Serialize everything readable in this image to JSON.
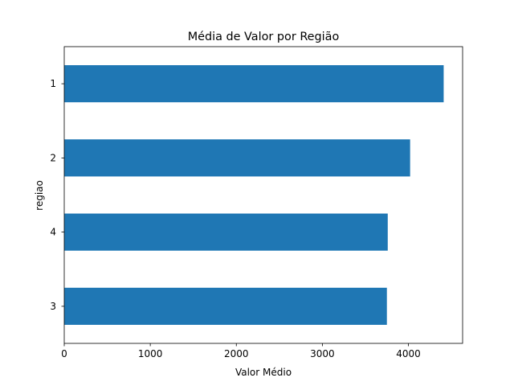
{
  "chart_data": {
    "type": "bar",
    "orientation": "horizontal",
    "title": "Média de Valor por Região",
    "xlabel": "Valor Médio",
    "ylabel": "regiao",
    "categories": [
      "1",
      "2",
      "4",
      "3"
    ],
    "values": [
      4410,
      4020,
      3760,
      3750
    ],
    "xlim": [
      0,
      4630
    ],
    "xticks": [
      0,
      1000,
      2000,
      3000,
      4000
    ],
    "bar_color": "#1f77b4",
    "grid": false,
    "legend": "none"
  }
}
